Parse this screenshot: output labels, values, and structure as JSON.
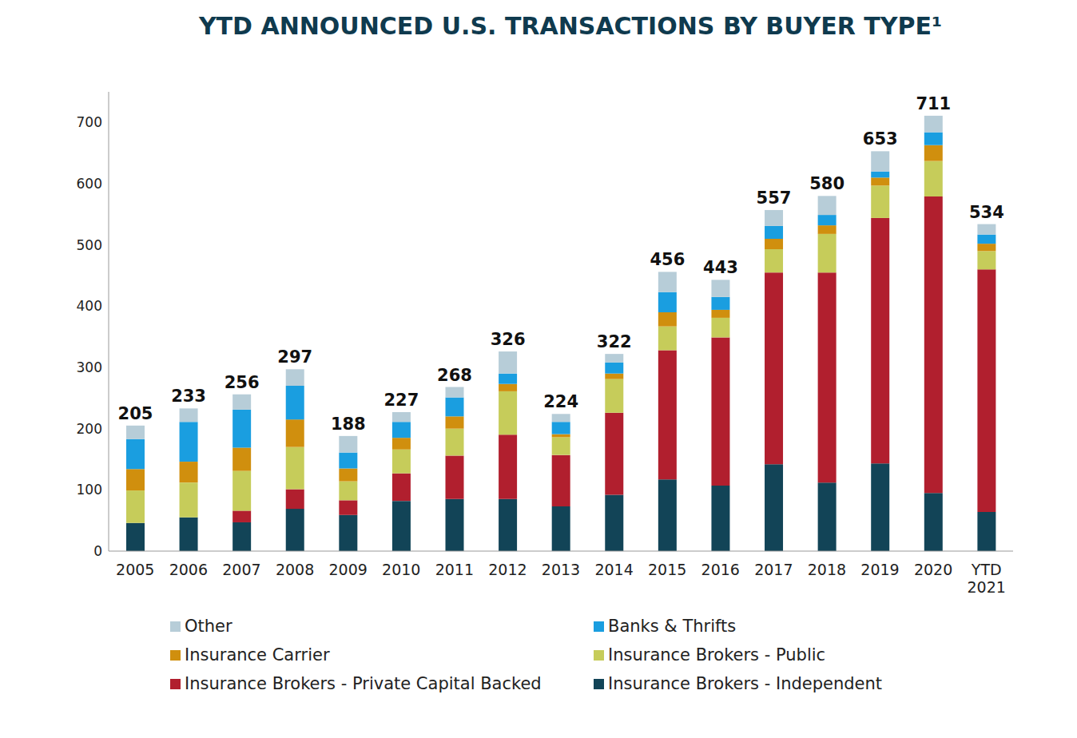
{
  "chart_data": {
    "type": "bar",
    "title": "YTD ANNOUNCED U.S. TRANSACTIONS BY BUYER TYPE¹",
    "stacked": true,
    "grid": false,
    "categories": [
      "2005",
      "2006",
      "2007",
      "2008",
      "2009",
      "2010",
      "2011",
      "2012",
      "2013",
      "2014",
      "2015",
      "2016",
      "2017",
      "2018",
      "2019",
      "2020",
      "YTD 2021"
    ],
    "totals": [
      205,
      233,
      256,
      297,
      188,
      227,
      268,
      326,
      224,
      322,
      456,
      443,
      557,
      580,
      653,
      711,
      534
    ],
    "series": [
      {
        "name": "Insurance Brokers - Independent",
        "color": "#124457",
        "values": [
          46,
          55,
          47,
          69,
          59,
          82,
          85,
          85,
          73,
          92,
          117,
          107,
          142,
          112,
          143,
          95,
          64
        ]
      },
      {
        "name": "Insurance Brokers - Private Capital Backed",
        "color": "#b11f2e",
        "values": [
          0,
          0,
          19,
          32,
          24,
          45,
          71,
          105,
          84,
          134,
          211,
          242,
          313,
          343,
          401,
          484,
          396
        ]
      },
      {
        "name": "Insurance Brokers - Public",
        "color": "#c6cc5a",
        "values": [
          53,
          57,
          65,
          69,
          31,
          39,
          44,
          71,
          29,
          55,
          39,
          32,
          38,
          63,
          53,
          58,
          30
        ]
      },
      {
        "name": "Insurance Carrier",
        "color": "#d08f0e",
        "values": [
          35,
          34,
          38,
          45,
          21,
          19,
          20,
          12,
          5,
          9,
          23,
          13,
          17,
          14,
          13,
          26,
          12
        ]
      },
      {
        "name": "Banks & Thrifts",
        "color": "#1a9ee0",
        "values": [
          49,
          65,
          62,
          55,
          26,
          26,
          31,
          17,
          20,
          18,
          33,
          21,
          21,
          17,
          10,
          21,
          15
        ]
      },
      {
        "name": "Other",
        "color": "#b7cdd8",
        "values": [
          22,
          22,
          25,
          27,
          27,
          16,
          17,
          36,
          13,
          14,
          33,
          28,
          26,
          31,
          33,
          27,
          17
        ]
      }
    ],
    "ylim": [
      0,
      750
    ],
    "yticks": [
      0,
      100,
      200,
      300,
      400,
      500,
      600,
      700
    ]
  }
}
